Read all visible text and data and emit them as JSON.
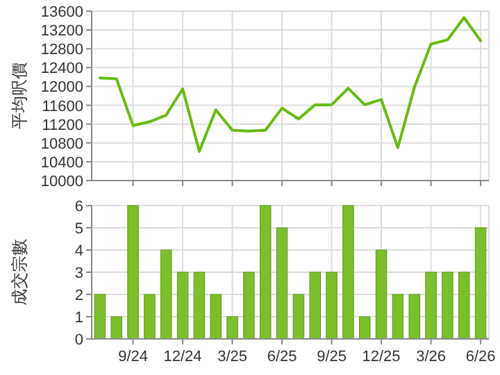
{
  "chart_data": [
    {
      "type": "line",
      "ylabel": "平均呎價",
      "categories": [
        null,
        null,
        null,
        null,
        null,
        null,
        null,
        null,
        null,
        null,
        null,
        null,
        null,
        null,
        null,
        null,
        null,
        null,
        null,
        null,
        null,
        null,
        null,
        null
      ],
      "series": [
        {
          "color": "#66bb11",
          "values": [
            12180,
            12160,
            11170,
            11250,
            11390,
            11950,
            10620,
            11500,
            11070,
            11050,
            11070,
            11540,
            11310,
            11610,
            11610,
            11960,
            11610,
            11720,
            10700,
            11980,
            12900,
            12990,
            13460,
            12970
          ]
        }
      ],
      "ylim": [
        10000,
        13600
      ],
      "yticks": [
        10000,
        10400,
        10800,
        11200,
        11600,
        12000,
        12400,
        12800,
        13200,
        13600
      ],
      "grid": true,
      "tick_labels": "y",
      "marker": "none"
    },
    {
      "type": "bar",
      "ylabel": "成交宗數",
      "categories": [
        null,
        null,
        "9/24",
        null,
        null,
        "12/24",
        null,
        null,
        "3/25",
        null,
        null,
        "6/25",
        null,
        null,
        "9/25",
        null,
        null,
        "12/25",
        null,
        null,
        "3/26",
        null,
        null,
        "6/26"
      ],
      "series": [
        {
          "color": "#7cbf2c",
          "values": [
            2,
            1,
            6,
            2,
            4,
            3,
            3,
            2,
            1,
            3,
            6,
            5,
            2,
            3,
            3,
            6,
            1,
            4,
            2,
            2,
            3,
            3,
            3,
            5
          ]
        }
      ],
      "ylim": [
        0,
        6
      ],
      "yticks": [
        0,
        1,
        2,
        3,
        4,
        5,
        6
      ],
      "grid": true
    }
  ]
}
